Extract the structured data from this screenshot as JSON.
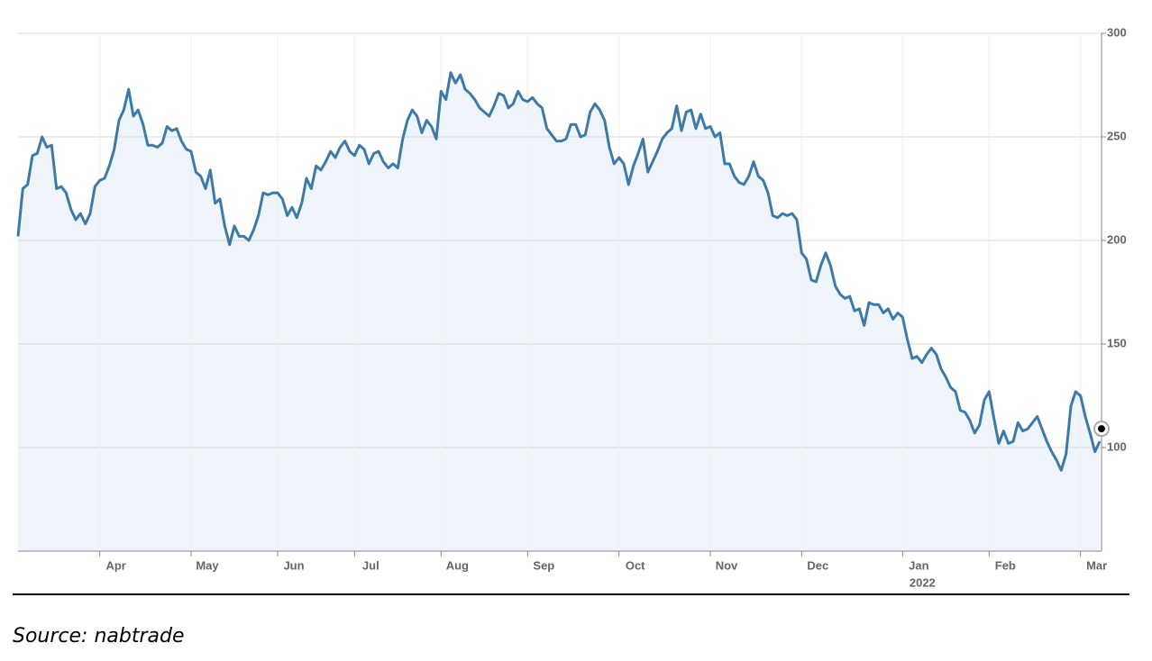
{
  "chart_data": {
    "type": "line",
    "color": "#3d7aa8",
    "fill": "#eef4f9",
    "values": [
      202,
      225,
      227,
      241,
      242,
      250,
      245,
      246,
      225,
      226,
      223,
      215,
      210,
      213,
      208,
      213,
      226,
      229,
      230,
      236,
      244,
      258,
      263,
      273,
      260,
      263,
      256,
      246,
      246,
      245,
      247,
      255,
      253,
      254,
      248,
      244,
      243,
      233,
      231,
      225,
      234,
      218,
      220,
      207,
      198,
      207,
      202,
      202,
      200,
      205,
      212,
      223,
      222,
      223,
      223,
      220,
      212,
      216,
      211,
      218,
      230,
      225,
      236,
      234,
      238,
      243,
      240,
      245,
      248,
      243,
      241,
      246,
      244,
      237,
      242,
      243,
      238,
      235,
      237,
      235,
      249,
      258,
      263,
      260,
      252,
      258,
      255,
      249,
      272,
      268,
      281,
      276,
      280,
      273,
      271,
      268,
      264,
      262,
      260,
      265,
      271,
      270,
      264,
      266,
      272,
      268,
      267,
      269,
      266,
      264,
      254,
      251,
      248,
      248,
      249,
      256,
      256,
      250,
      251,
      262,
      266,
      263,
      258,
      245,
      237,
      240,
      237,
      227,
      236,
      242,
      249,
      233,
      238,
      243,
      249,
      252,
      254,
      265,
      253,
      262,
      263,
      254,
      261,
      254,
      255,
      250,
      252,
      237,
      237,
      231,
      228,
      227,
      231,
      238,
      231,
      229,
      223,
      212,
      211,
      213,
      212,
      213,
      210,
      194,
      191,
      181,
      180,
      188,
      194,
      188,
      178,
      174,
      172,
      173,
      166,
      167,
      159,
      170,
      169,
      169,
      165,
      167,
      162,
      165,
      163,
      152,
      143,
      144,
      141,
      145,
      148,
      145,
      138,
      134,
      129,
      127,
      118,
      117,
      113,
      107,
      111,
      123,
      127,
      114,
      102,
      108,
      102,
      103,
      112,
      108,
      109,
      112,
      115,
      109,
      103,
      98,
      94,
      89,
      97,
      120,
      127,
      125,
      115,
      107,
      98,
      103
    ],
    "xlim": [
      0,
      225
    ],
    "xticks": [
      {
        "value": 17,
        "label": "Apr"
      },
      {
        "value": 36,
        "label": "May"
      },
      {
        "value": 54,
        "label": "Jun"
      },
      {
        "value": 70,
        "label": "Jul"
      },
      {
        "value": 88,
        "label": "Aug"
      },
      {
        "value": 106,
        "label": "Sep"
      },
      {
        "value": 125,
        "label": "Oct"
      },
      {
        "value": 144,
        "label": "Nov"
      },
      {
        "value": 163,
        "label": "Dec"
      },
      {
        "value": 184,
        "label": "Jan"
      },
      {
        "value": 202,
        "label": "Feb"
      },
      {
        "value": 221,
        "label": "Mar"
      }
    ],
    "year_label": "2022",
    "ylim": [
      50,
      300
    ],
    "yticks": [
      100,
      150,
      200,
      250,
      300
    ],
    "grid": true,
    "source": "Source: nabtrade"
  }
}
